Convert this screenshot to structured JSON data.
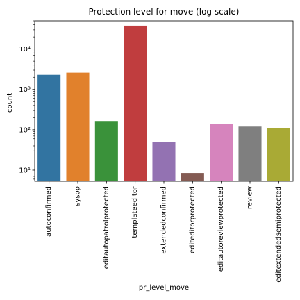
{
  "chart_data": {
    "type": "bar",
    "title": "Protection level for move (log scale)",
    "xlabel": "pr_level_move",
    "ylabel": "count",
    "yscale": "log",
    "ylim": [
      5.3,
      50000
    ],
    "yticks": [
      10,
      100,
      1000,
      10000
    ],
    "ytick_labels": [
      "10¹",
      "10²",
      "10³",
      "10⁴"
    ],
    "grid": false,
    "legend": "none",
    "categories": [
      "autoconfirmed",
      "sysop",
      "editautopatrolprotected",
      "templateeditor",
      "extendedconfirmed",
      "editeditorprotected",
      "editautoreviewprotected",
      "review",
      "editextendedsemiprotected"
    ],
    "values": [
      2300,
      2600,
      165,
      38000,
      50,
      8.5,
      140,
      120,
      112
    ],
    "colors": [
      "#3274a1",
      "#e1812c",
      "#3a923a",
      "#c03d3e",
      "#9372b2",
      "#845b53",
      "#d684bd",
      "#7f7f7f",
      "#a9aa35"
    ]
  }
}
